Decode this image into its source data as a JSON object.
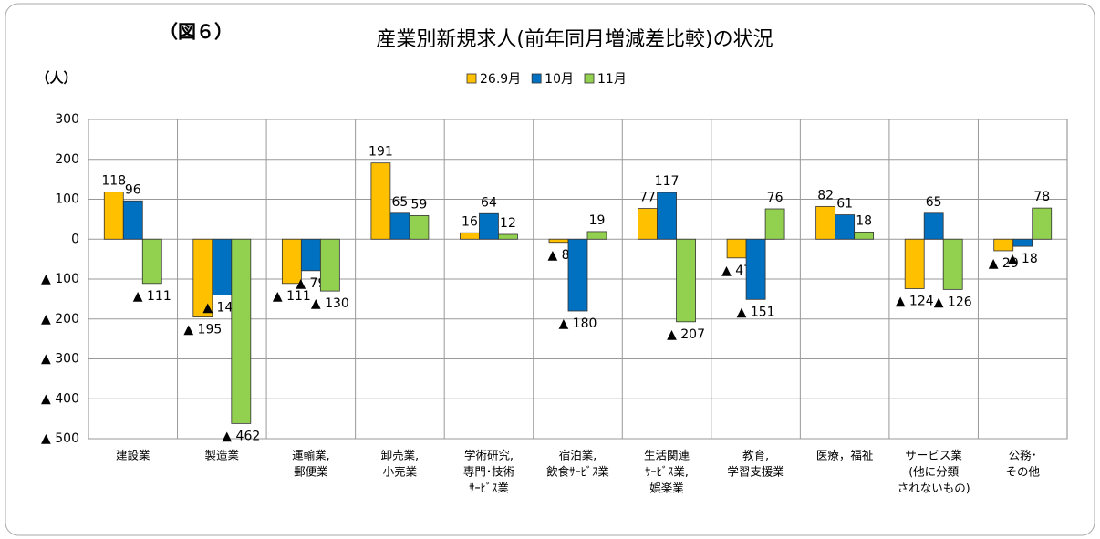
{
  "chart_data": {
    "type": "bar",
    "figure_label": "（図６）",
    "title": "産業別新規求人(前年同月増減差比較)の状況",
    "y_label": "（人）",
    "categories": [
      [
        "建設業"
      ],
      [
        "製造業"
      ],
      [
        "運輸業,",
        "郵便業"
      ],
      [
        "卸売業,",
        "小売業"
      ],
      [
        "学術研究,",
        "専門･技術",
        "ｻｰﾋﾞｽ業"
      ],
      [
        "宿泊業,",
        "飲食ｻｰﾋﾞｽ業"
      ],
      [
        "生活関連",
        "ｻｰﾋﾞｽ業,",
        "娯楽業"
      ],
      [
        "教育,",
        "学習支援業"
      ],
      [
        "医療，福祉"
      ],
      [
        "サービス業",
        "(他に分類",
        "されないもの)"
      ],
      [
        "公務･",
        "その他"
      ]
    ],
    "series": [
      {
        "name": "26.9月",
        "color": "#ffc000",
        "values": [
          118,
          -195,
          -111,
          191,
          16,
          -8,
          77,
          -47,
          82,
          -124,
          -29
        ],
        "value_labels": [
          "118",
          "▲ 195",
          "▲ 111",
          "191",
          "16",
          "▲ 8",
          "77",
          "▲ 47",
          "82",
          "▲ 124",
          "▲ 29"
        ]
      },
      {
        "name": "10月",
        "color": "#0070c0",
        "values": [
          96,
          -140,
          -79,
          65,
          64,
          -180,
          117,
          -151,
          61,
          65,
          -18
        ],
        "value_labels": [
          "96",
          "▲ 140",
          "▲ 79",
          "65",
          "64",
          "▲ 180",
          "117",
          "▲ 151",
          "61",
          "65",
          "▲ 18"
        ]
      },
      {
        "name": "11月",
        "color": "#92d050",
        "values": [
          -111,
          -462,
          -130,
          59,
          12,
          19,
          -207,
          76,
          18,
          -126,
          78
        ],
        "value_labels": [
          "▲ 111",
          "▲ 462",
          "▲ 130",
          "59",
          "12",
          "19",
          "▲ 207",
          "76",
          "18",
          "▲ 126",
          "78"
        ]
      }
    ],
    "ylim": [
      -500,
      300
    ],
    "yticks": [
      {
        "value": -500,
        "label": "▲ 500"
      },
      {
        "value": -400,
        "label": "▲ 400"
      },
      {
        "value": -300,
        "label": "▲ 300"
      },
      {
        "value": -200,
        "label": "▲ 200"
      },
      {
        "value": -100,
        "label": "▲ 100"
      },
      0,
      100,
      200,
      300
    ],
    "grid": true,
    "legend": "top"
  }
}
